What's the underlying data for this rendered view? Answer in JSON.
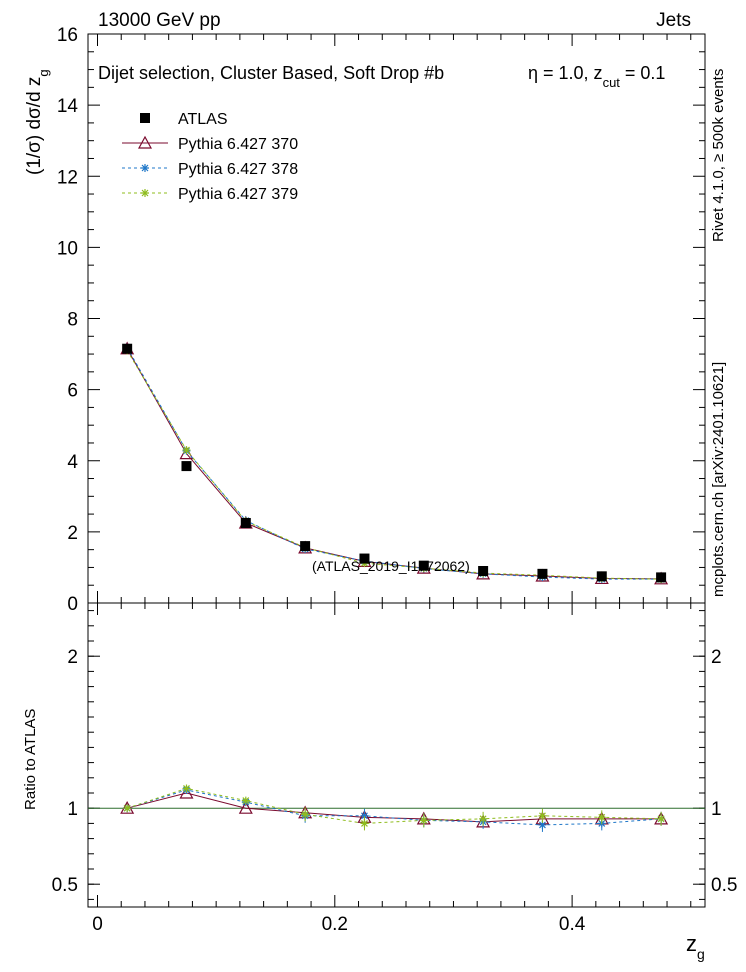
{
  "header": {
    "left": "13000 GeV pp",
    "right": "Jets",
    "title": "Dijet selection, Cluster Based, Soft Drop #b",
    "eta_label": "η = 1.0, z",
    "cut_sub": "cut",
    "cut_value": " = 0.1"
  },
  "side": {
    "rivet": "Rivet 4.1.0, ≥ 500k events",
    "mcplots": "mcplots.cern.ch [arXiv:2401.10621]"
  },
  "watermark": "(ATLAS_2019_I1772062)",
  "chart_data": {
    "type": "line",
    "x": [
      0.025,
      0.075,
      0.125,
      0.175,
      0.225,
      0.275,
      0.325,
      0.375,
      0.425,
      0.475
    ],
    "xlim": [
      -0.008,
      0.512
    ],
    "xticks": [
      0,
      0.2,
      0.4
    ],
    "xtick_labels": [
      "0",
      "0.2",
      "0.4"
    ],
    "xlabel_main": "z",
    "xlabel_sub": "g",
    "main": {
      "ylabel": "(1/σ) dσ/d z",
      "ylabel_sub": "g",
      "ylim": [
        0,
        16
      ],
      "yticks": [
        0,
        2,
        4,
        6,
        8,
        10,
        12,
        14,
        16
      ],
      "ytick_labels": [
        "0",
        "2",
        "4",
        "6",
        "8",
        "10",
        "12",
        "14",
        "16"
      ],
      "data": {
        "name": "ATLAS",
        "values": [
          7.15,
          3.85,
          2.25,
          1.6,
          1.25,
          1.05,
          0.9,
          0.82,
          0.75,
          0.72
        ]
      },
      "series": [
        {
          "name": "Pythia 6.427 370",
          "color": "#7a0a2e",
          "marker": "triangle",
          "dash": "",
          "values": [
            7.15,
            4.2,
            2.25,
            1.55,
            1.17,
            0.98,
            0.82,
            0.76,
            0.69,
            0.68
          ]
        },
        {
          "name": "Pythia 6.427 378",
          "color": "#1f77c8",
          "marker": "star",
          "dash": "3,3",
          "values": [
            7.18,
            4.28,
            2.32,
            1.52,
            1.18,
            0.97,
            0.82,
            0.73,
            0.67,
            0.67
          ]
        },
        {
          "name": "Pythia 6.427 379",
          "color": "#8fbc1e",
          "marker": "star",
          "dash": "3,3",
          "values": [
            7.1,
            4.3,
            2.3,
            1.56,
            1.12,
            0.98,
            0.84,
            0.78,
            0.7,
            0.67
          ]
        }
      ]
    },
    "ratio": {
      "ylabel": "Ratio to ATLAS",
      "ylim": [
        0.35,
        2.35
      ],
      "yticks": [
        0.5,
        1,
        2
      ],
      "ytick_labels": [
        "0.5",
        "1",
        "2"
      ],
      "series": [
        {
          "name": "Pythia 6.427 370",
          "values": [
            1.0,
            1.1,
            1.0,
            0.97,
            0.94,
            0.93,
            0.91,
            0.93,
            0.93,
            0.93
          ]
        },
        {
          "name": "Pythia 6.427 378",
          "values": [
            1.0,
            1.12,
            1.04,
            0.95,
            0.95,
            0.92,
            0.91,
            0.89,
            0.9,
            0.93
          ]
        },
        {
          "name": "Pythia 6.427 379",
          "values": [
            1.0,
            1.13,
            1.05,
            0.96,
            0.9,
            0.92,
            0.93,
            0.95,
            0.94,
            0.93
          ]
        }
      ]
    }
  }
}
